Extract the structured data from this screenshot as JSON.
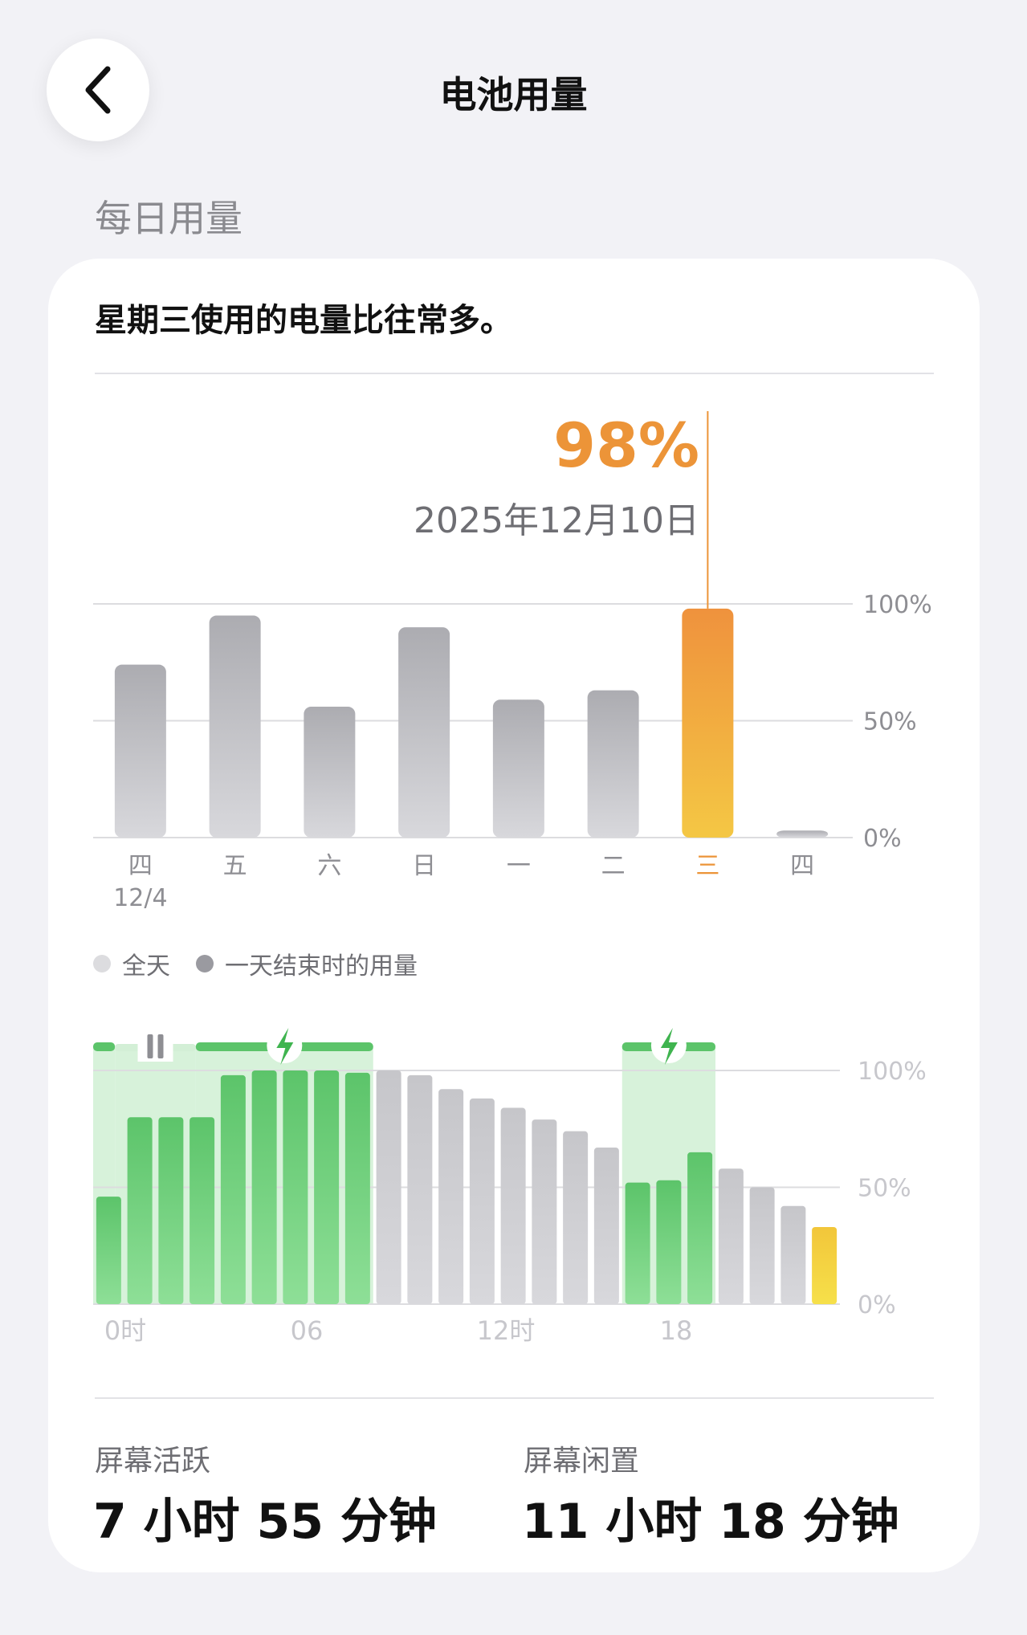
{
  "header": {
    "title": "电池用量"
  },
  "section": {
    "title": "每日用量"
  },
  "insight": "星期三使用的电量比往常多。",
  "selected": {
    "value": "98%",
    "date": "2025年12月10日"
  },
  "colors": {
    "accent": "#ec9438",
    "green": "#5cc46a",
    "gray_bar": "#c4c4c8",
    "yellow": "#f2cf3a"
  },
  "daily_chart": {
    "type": "bar",
    "ylim": [
      0,
      100
    ],
    "y_ticks": [
      "100%",
      "50%",
      "0%"
    ],
    "categories": [
      "四",
      "五",
      "六",
      "日",
      "一",
      "二",
      "三",
      "四"
    ],
    "sublabels": [
      "12/4",
      "",
      "",
      "",
      "",
      "",
      "",
      ""
    ],
    "values": [
      74,
      95,
      56,
      90,
      59,
      63,
      98,
      3
    ],
    "highlight_index": 6
  },
  "legend": [
    {
      "label": "全天",
      "color": "#dcdcdf"
    },
    {
      "label": "一天结束时的用量",
      "color": "#9a9aa0"
    }
  ],
  "chart_data": {
    "type": "bar",
    "ylim": [
      0,
      100
    ],
    "y_ticks": [
      "100%",
      "50%",
      "0%"
    ],
    "x_ticks": [
      "0时",
      "06",
      "12时",
      "18"
    ],
    "hours": [
      0,
      1,
      2,
      3,
      4,
      5,
      6,
      7,
      8,
      9,
      10,
      11,
      12,
      13,
      14,
      15,
      16,
      17,
      18,
      19,
      20,
      21,
      22,
      23
    ],
    "values": [
      46,
      80,
      80,
      80,
      98,
      100,
      100,
      100,
      99,
      100,
      98,
      92,
      88,
      84,
      79,
      74,
      67,
      52,
      53,
      65,
      58,
      50,
      42,
      33
    ],
    "status": [
      "charged",
      "charged",
      "charged",
      "charged",
      "charged",
      "charged",
      "charged",
      "charged",
      "charged",
      "drain",
      "drain",
      "drain",
      "drain",
      "drain",
      "drain",
      "drain",
      "drain",
      "charged",
      "charged",
      "charged",
      "drain",
      "drain",
      "drain",
      "current"
    ],
    "charging_periods": [
      {
        "start": 0,
        "end": 0.7,
        "icon": "none"
      },
      {
        "start": 0.7,
        "end": 3.3,
        "icon": "pause-icon"
      },
      {
        "start": 3.3,
        "end": 9.0,
        "icon": "bolt-icon"
      },
      {
        "start": 17.0,
        "end": 20.0,
        "icon": "bolt-icon"
      }
    ]
  },
  "stats": [
    {
      "label": "屏幕活跃",
      "value": "7 小时 55 分钟"
    },
    {
      "label": "屏幕闲置",
      "value": "11 小时 18 分钟"
    }
  ]
}
